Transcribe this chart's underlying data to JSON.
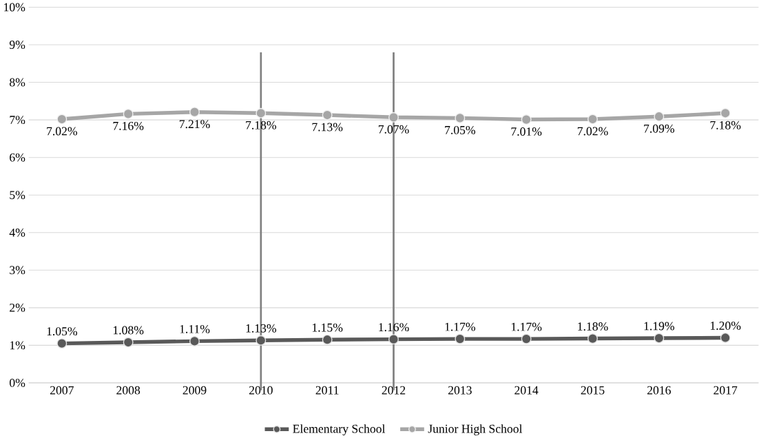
{
  "chart_data": {
    "type": "line",
    "categories": [
      "2007",
      "2008",
      "2009",
      "2010",
      "2011",
      "2012",
      "2013",
      "2014",
      "2015",
      "2016",
      "2017"
    ],
    "series": [
      {
        "name": "Elementary School",
        "color": "#595959",
        "values": [
          1.05,
          1.08,
          1.11,
          1.13,
          1.15,
          1.16,
          1.17,
          1.17,
          1.18,
          1.19,
          1.2
        ],
        "value_labels": [
          "1.05%",
          "1.08%",
          "1.11%",
          "1.13%",
          "1.15%",
          "1.16%",
          "1.17%",
          "1.17%",
          "1.18%",
          "1.19%",
          "1.20%"
        ]
      },
      {
        "name": "Junior High School",
        "color": "#a6a6a6",
        "values": [
          7.02,
          7.16,
          7.21,
          7.18,
          7.13,
          7.07,
          7.05,
          7.01,
          7.02,
          7.09,
          7.18
        ],
        "value_labels": [
          "7.02%",
          "7.16%",
          "7.21%",
          "7.18%",
          "7.13%",
          "7.07%",
          "7.05%",
          "7.01%",
          "7.02%",
          "7.09%",
          "7.18%"
        ]
      }
    ],
    "ylim": [
      0,
      10
    ],
    "yticks": [
      {
        "value": 0,
        "label": "0%"
      },
      {
        "value": 1,
        "label": "1%"
      },
      {
        "value": 2,
        "label": "2%"
      },
      {
        "value": 3,
        "label": "3%"
      },
      {
        "value": 4,
        "label": "4%"
      },
      {
        "value": 5,
        "label": "5%"
      },
      {
        "value": 6,
        "label": "6%"
      },
      {
        "value": 7,
        "label": "7%"
      },
      {
        "value": 8,
        "label": "8%"
      },
      {
        "value": 9,
        "label": "9%"
      },
      {
        "value": 10,
        "label": "10%"
      }
    ],
    "ref_lines": [
      {
        "axis": "x",
        "value": "2010",
        "color": "#808080"
      },
      {
        "axis": "x",
        "value": "2012",
        "color": "#808080"
      }
    ],
    "grid": "y",
    "legend": "bottom",
    "marker": "circle",
    "line_style": "solid"
  }
}
